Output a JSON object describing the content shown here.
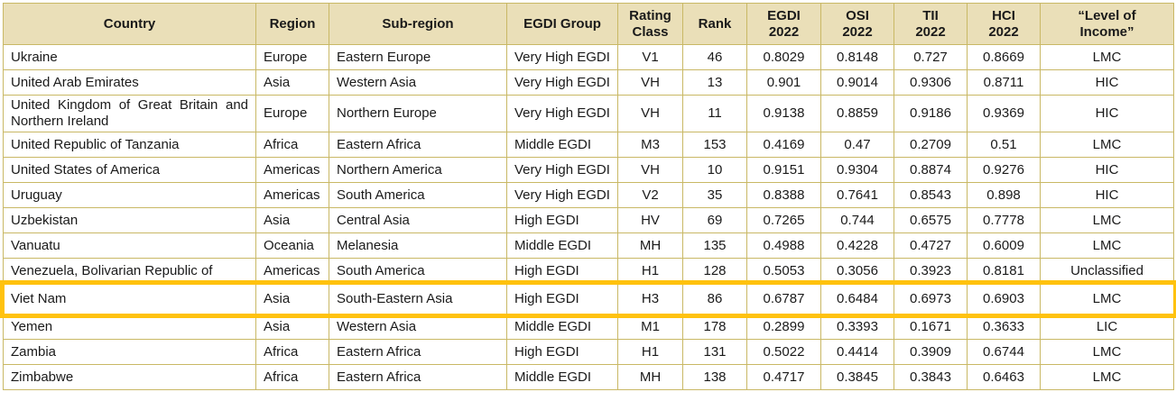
{
  "table": {
    "header_bg": "#EADFB8",
    "border_color": "#C9B865",
    "highlight_color": "#FFC20E",
    "highlighted_row_index": 9,
    "highlighted_country": "Viet Nam",
    "columns": [
      {
        "key": "country",
        "label": "Country",
        "align": "left"
      },
      {
        "key": "region",
        "label": "Region",
        "align": "left"
      },
      {
        "key": "subregion",
        "label": "Sub-region",
        "align": "left"
      },
      {
        "key": "egdi_group",
        "label": "EGDI Group",
        "align": "left"
      },
      {
        "key": "rating_class",
        "label": "Rating\nClass",
        "align": "center"
      },
      {
        "key": "rank",
        "label": "Rank",
        "align": "center"
      },
      {
        "key": "egdi_2022",
        "label": "EGDI\n2022",
        "align": "center"
      },
      {
        "key": "osi_2022",
        "label": "OSI\n2022",
        "align": "center"
      },
      {
        "key": "tii_2022",
        "label": "TII\n2022",
        "align": "center"
      },
      {
        "key": "hci_2022",
        "label": "HCI\n2022",
        "align": "center"
      },
      {
        "key": "income_level",
        "label": "“Level of\nIncome”",
        "align": "center"
      }
    ],
    "rows": [
      [
        "Ukraine",
        "Europe",
        "Eastern Europe",
        "Very High EGDI",
        "V1",
        "46",
        "0.8029",
        "0.8148",
        "0.727",
        "0.8669",
        "LMC"
      ],
      [
        "United Arab Emirates",
        "Asia",
        "Western Asia",
        "Very High EGDI",
        "VH",
        "13",
        "0.901",
        "0.9014",
        "0.9306",
        "0.8711",
        "HIC"
      ],
      [
        "United Kingdom of Great Britain and Northern Ireland",
        "Europe",
        "Northern Europe",
        "Very High EGDI",
        "VH",
        "11",
        "0.9138",
        "0.8859",
        "0.9186",
        "0.9369",
        "HIC"
      ],
      [
        "United Republic of Tanzania",
        "Africa",
        "Eastern Africa",
        "Middle EGDI",
        "M3",
        "153",
        "0.4169",
        "0.47",
        "0.2709",
        "0.51",
        "LMC"
      ],
      [
        "United States of America",
        "Americas",
        "Northern America",
        "Very High EGDI",
        "VH",
        "10",
        "0.9151",
        "0.9304",
        "0.8874",
        "0.9276",
        "HIC"
      ],
      [
        "Uruguay",
        "Americas",
        "South America",
        "Very High EGDI",
        "V2",
        "35",
        "0.8388",
        "0.7641",
        "0.8543",
        "0.898",
        "HIC"
      ],
      [
        "Uzbekistan",
        "Asia",
        "Central Asia",
        "High EGDI",
        "HV",
        "69",
        "0.7265",
        "0.744",
        "0.6575",
        "0.7778",
        "LMC"
      ],
      [
        "Vanuatu",
        "Oceania",
        "Melanesia",
        "Middle EGDI",
        "MH",
        "135",
        "0.4988",
        "0.4228",
        "0.4727",
        "0.6009",
        "LMC"
      ],
      [
        "Venezuela, Bolivarian Republic of",
        "Americas",
        "South America",
        "High EGDI",
        "H1",
        "128",
        "0.5053",
        "0.3056",
        "0.3923",
        "0.8181",
        "Unclassified"
      ],
      [
        "Viet Nam",
        "Asia",
        "South-Eastern Asia",
        "High EGDI",
        "H3",
        "86",
        "0.6787",
        "0.6484",
        "0.6973",
        "0.6903",
        "LMC"
      ],
      [
        "Yemen",
        "Asia",
        "Western Asia",
        "Middle EGDI",
        "M1",
        "178",
        "0.2899",
        "0.3393",
        "0.1671",
        "0.3633",
        "LIC"
      ],
      [
        "Zambia",
        "Africa",
        "Eastern Africa",
        "High EGDI",
        "H1",
        "131",
        "0.5022",
        "0.4414",
        "0.3909",
        "0.6744",
        "LMC"
      ],
      [
        "Zimbabwe",
        "Africa",
        "Eastern Africa",
        "Middle EGDI",
        "MH",
        "138",
        "0.4717",
        "0.3845",
        "0.3843",
        "0.6463",
        "LMC"
      ]
    ]
  }
}
